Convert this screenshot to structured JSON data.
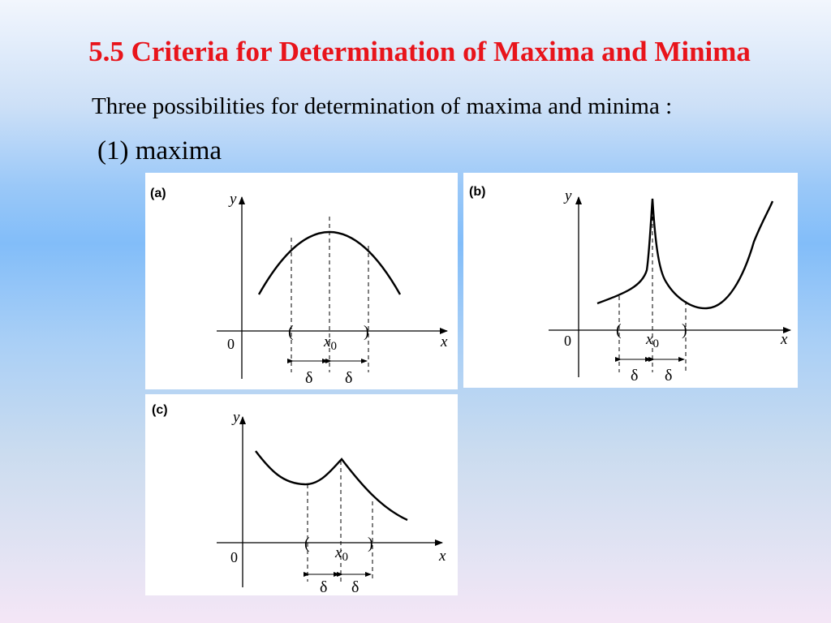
{
  "slide": {
    "title": "5.5 Criteria for Determination of Maxima and Minima",
    "subtitle": "Three possibilities for determination of maxima and minima :",
    "item": "(1) maxima"
  },
  "panels": [
    {
      "id": "a",
      "label": "(a)",
      "axis_y": "y",
      "axis_x": "x",
      "origin": "0",
      "point_x": "x",
      "point_sub": "0",
      "left_paren": "(",
      "right_paren": ")",
      "delta_left": "δ",
      "delta_right": "δ"
    },
    {
      "id": "b",
      "label": "(b)",
      "axis_y": "y",
      "axis_x": "x",
      "origin": "0",
      "point_x": "x",
      "point_sub": "0",
      "left_paren": "(",
      "right_paren": ")",
      "delta_left": "δ",
      "delta_right": "δ"
    },
    {
      "id": "c",
      "label": "(c)",
      "axis_y": "y",
      "axis_x": "x",
      "origin": "0",
      "point_x": "x",
      "point_sub": "0",
      "left_paren": "(",
      "right_paren": ")",
      "delta_left": "δ",
      "delta_right": "δ"
    }
  ],
  "colors": {
    "title": "#e8141b",
    "ink": "#000000",
    "panel_bg": "#ffffff"
  }
}
